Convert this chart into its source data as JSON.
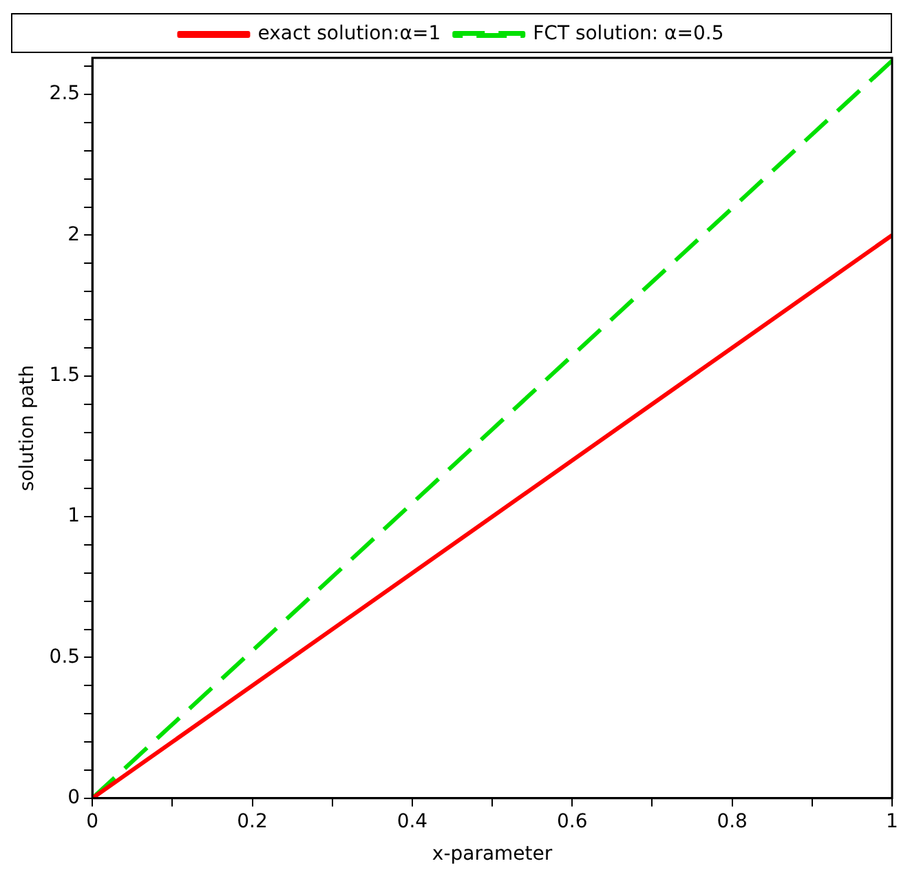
{
  "chart_data": {
    "type": "line",
    "xlabel": "x-parameter",
    "ylabel": "solution path",
    "x": [
      0,
      1
    ],
    "series": [
      {
        "name": "exact solution:α=1",
        "color": "#ff0000",
        "values": [
          0,
          2
        ],
        "line_style": "solid"
      },
      {
        "name": "FCT solution: α=0.5",
        "color": "#00e000",
        "values": [
          0,
          2.62
        ],
        "line_style": "dashed"
      }
    ],
    "xlim": [
      0,
      1
    ],
    "ylim": [
      0,
      2.63
    ],
    "xticks": [
      0,
      {
        "value": 0.1,
        "label": null
      },
      0.2,
      {
        "value": 0.3,
        "label": null
      },
      0.4,
      {
        "value": 0.5,
        "label": null
      },
      0.6,
      {
        "value": 0.7,
        "label": null
      },
      0.8,
      {
        "value": 0.9,
        "label": null
      },
      1
    ],
    "yticks": [
      0,
      {
        "value": 0.1,
        "label": null
      },
      {
        "value": 0.2,
        "label": null
      },
      {
        "value": 0.3,
        "label": null
      },
      {
        "value": 0.4,
        "label": null
      },
      0.5,
      {
        "value": 0.6,
        "label": null
      },
      {
        "value": 0.7,
        "label": null
      },
      {
        "value": 0.8,
        "label": null
      },
      {
        "value": 0.9,
        "label": null
      },
      1,
      {
        "value": 1.1,
        "label": null
      },
      {
        "value": 1.2,
        "label": null
      },
      {
        "value": 1.3,
        "label": null
      },
      {
        "value": 1.4,
        "label": null
      },
      1.5,
      {
        "value": 1.6,
        "label": null
      },
      {
        "value": 1.7,
        "label": null
      },
      {
        "value": 1.8,
        "label": null
      },
      {
        "value": 1.9,
        "label": null
      },
      2,
      {
        "value": 2.1,
        "label": null
      },
      {
        "value": 2.2,
        "label": null
      },
      {
        "value": 2.3,
        "label": null
      },
      {
        "value": 2.4,
        "label": null
      },
      2.5,
      {
        "value": 2.6,
        "label": null
      }
    ],
    "grid": false,
    "legend": "top",
    "marker": "none"
  }
}
